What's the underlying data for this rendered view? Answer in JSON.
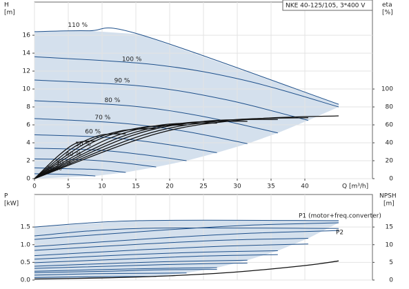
{
  "chart_data": [
    {
      "type": "line",
      "title": "NKE 40-125/105, 3*400 V",
      "xlabel": "Q [m³/h]",
      "ylabel": [
        "H",
        "[m]"
      ],
      "y2label": [
        "eta",
        "[%]"
      ],
      "xlim": [
        0,
        50
      ],
      "xticks": [
        0,
        5,
        10,
        15,
        20,
        25,
        30,
        35,
        40
      ],
      "ylim": [
        0,
        19.7
      ],
      "yticks": [
        0,
        2,
        4,
        6,
        8,
        10,
        12,
        14,
        16
      ],
      "y2lim": [
        0,
        197
      ],
      "y2ticks": [
        0,
        20,
        40,
        60,
        80,
        100
      ],
      "grid": true,
      "fill": "#c9d8e8",
      "series": [
        {
          "name": "110 %",
          "color": "#1d4f8a",
          "x": [
            0,
            8,
            15.5,
            45
          ],
          "values": [
            16.4,
            16.5,
            16.1,
            8.3
          ]
        },
        {
          "name": "100 %",
          "color": "#1d4f8a",
          "x": [
            0,
            18,
            31.5,
            45
          ],
          "values": [
            13.6,
            12.7,
            10.9,
            8.0
          ]
        },
        {
          "name": "90 %",
          "color": "#1d4f8a",
          "x": [
            0,
            16.2,
            28.4,
            40.5
          ],
          "values": [
            11.0,
            10.3,
            8.8,
            6.5
          ]
        },
        {
          "name": "80 %",
          "color": "#1d4f8a",
          "x": [
            0,
            14.4,
            25.2,
            36
          ],
          "values": [
            8.7,
            8.1,
            6.9,
            5.1
          ]
        },
        {
          "name": "70 %",
          "color": "#1d4f8a",
          "x": [
            0,
            12.6,
            22.1,
            31.5
          ],
          "values": [
            6.7,
            6.2,
            5.3,
            3.9
          ]
        },
        {
          "name": "60 %",
          "color": "#1d4f8a",
          "x": [
            0,
            10.8,
            18.9,
            27
          ],
          "values": [
            4.9,
            4.6,
            3.9,
            2.9
          ]
        },
        {
          "name": "50 %",
          "color": "#1d4f8a",
          "x": [
            0,
            9,
            15.8,
            22.5
          ],
          "values": [
            3.4,
            3.2,
            2.7,
            2.0
          ]
        },
        {
          "name": "40 %",
          "color": "#1d4f8a",
          "x": [
            0,
            7.2,
            12.6,
            18
          ],
          "values": [
            2.2,
            2.1,
            1.8,
            1.3
          ]
        },
        {
          "name": "30 %",
          "color": "#1d4f8a",
          "x": [
            0,
            5.4,
            9.5,
            13.5
          ],
          "values": [
            1.2,
            1.1,
            1.0,
            0.7
          ]
        },
        {
          "name": "20 %",
          "color": "#1d4f8a",
          "x": [
            0,
            3.6,
            6.3,
            9
          ],
          "values": [
            0.55,
            0.5,
            0.43,
            0.3
          ]
        },
        {
          "axis": "y2",
          "color": "#111111",
          "x": [
            0,
            18,
            31.5,
            45
          ],
          "values": [
            0,
            50,
            66,
            70
          ]
        },
        {
          "axis": "y2",
          "color": "#111111",
          "x": [
            0,
            16.2,
            28.4,
            40.5
          ],
          "values": [
            0,
            49,
            65,
            68
          ]
        },
        {
          "axis": "y2",
          "color": "#111111",
          "x": [
            0,
            14.4,
            25.2,
            36
          ],
          "values": [
            0,
            48,
            64,
            66
          ]
        },
        {
          "axis": "y2",
          "color": "#111111",
          "x": [
            0,
            12.6,
            22.1,
            31.5
          ],
          "values": [
            0,
            46,
            62,
            64
          ]
        },
        {
          "axis": "y2",
          "color": "#111111",
          "x": [
            0,
            10.8,
            18.9,
            27
          ],
          "values": [
            0,
            44,
            60,
            62
          ]
        },
        {
          "axis": "y2",
          "color": "#111111",
          "x": [
            0,
            9,
            15.8,
            22.5
          ],
          "values": [
            0,
            42,
            57,
            60
          ]
        },
        {
          "axis": "y2",
          "color": "#111111",
          "x": [
            0,
            7.2,
            12.6,
            18
          ],
          "values": [
            0,
            38,
            53,
            56
          ]
        },
        {
          "axis": "y2",
          "color": "#111111",
          "x": [
            0,
            5.4,
            9.5,
            13.5
          ],
          "values": [
            0,
            33,
            48,
            50
          ]
        },
        {
          "axis": "y2",
          "color": "#111111",
          "x": [
            0,
            3.6,
            6.3,
            9
          ],
          "values": [
            0,
            26,
            40,
            42
          ]
        }
      ]
    },
    {
      "type": "line",
      "ylabel": [
        "P",
        "[kW]"
      ],
      "y2label": [
        "NPSH",
        "[m]"
      ],
      "annotations": [
        "P1 (motor+freq.converter)",
        "P2"
      ],
      "xlim": [
        0,
        50
      ],
      "ylim": [
        0,
        2.42
      ],
      "yticks": [
        {
          "value": 0,
          "label": "0.0"
        },
        0.5,
        {
          "value": 1,
          "label": "1.0"
        },
        1.5
      ],
      "y2lim": [
        0,
        24.2
      ],
      "y2ticks": [
        0,
        5,
        10,
        15
      ],
      "grid": true,
      "fill": "#c9d8e8",
      "series": [
        {
          "color": "#1d4f8a",
          "x": [
            0,
            15.5,
            45
          ],
          "values": [
            1.5,
            1.68,
            1.68
          ]
        },
        {
          "color": "#1d4f8a",
          "x": [
            0,
            18,
            31.5,
            45
          ],
          "values": [
            1.15,
            1.4,
            1.55,
            1.62
          ]
        },
        {
          "color": "#1d4f8a",
          "x": [
            0,
            16.2,
            28.4,
            40.5
          ],
          "values": [
            0.84,
            1.02,
            1.13,
            1.18
          ]
        },
        {
          "color": "#1d4f8a",
          "x": [
            0,
            14.4,
            25.2,
            36
          ],
          "values": [
            0.59,
            0.72,
            0.79,
            0.83
          ]
        },
        {
          "color": "#1d4f8a",
          "x": [
            0,
            12.6,
            22.1,
            31.5
          ],
          "values": [
            0.39,
            0.48,
            0.53,
            0.56
          ]
        },
        {
          "color": "#1d4f8a",
          "x": [
            0,
            10.8,
            18.9,
            27
          ],
          "values": [
            0.25,
            0.3,
            0.33,
            0.35
          ]
        },
        {
          "color": "#1d4f8a",
          "x": [
            0,
            9,
            15.8,
            22.5
          ],
          "values": [
            0.14,
            0.18,
            0.19,
            0.2
          ]
        },
        {
          "color": "#1d4f8a",
          "x": [
            0,
            7.2,
            12.6,
            18
          ],
          "values": [
            0.07,
            0.09,
            0.1,
            0.1
          ]
        },
        {
          "color": "#1d4f8a",
          "x": [
            0,
            15.5,
            45
          ],
          "values": [
            1.25,
            1.46,
            1.46
          ]
        },
        {
          "color": "#1d4f8a",
          "x": [
            0,
            18,
            31.5,
            45
          ],
          "values": [
            0.95,
            1.18,
            1.32,
            1.4
          ]
        },
        {
          "color": "#1d4f8a",
          "x": [
            0,
            16.2,
            28.4,
            40.5
          ],
          "values": [
            0.69,
            0.86,
            0.96,
            1.02
          ]
        },
        {
          "color": "#1d4f8a",
          "x": [
            0,
            14.4,
            25.2,
            36
          ],
          "values": [
            0.49,
            0.6,
            0.68,
            0.72
          ]
        },
        {
          "color": "#1d4f8a",
          "x": [
            0,
            12.6,
            22.1,
            31.5
          ],
          "values": [
            0.33,
            0.4,
            0.45,
            0.48
          ]
        },
        {
          "color": "#1d4f8a",
          "x": [
            0,
            10.8,
            18.9,
            27
          ],
          "values": [
            0.21,
            0.25,
            0.29,
            0.3
          ]
        },
        {
          "axis": "y2",
          "color": "#111111",
          "x": [
            0,
            10,
            20,
            30,
            40,
            45
          ],
          "values": [
            0.3,
            0.6,
            1.2,
            2.3,
            4.1,
            5.4
          ]
        }
      ]
    }
  ]
}
